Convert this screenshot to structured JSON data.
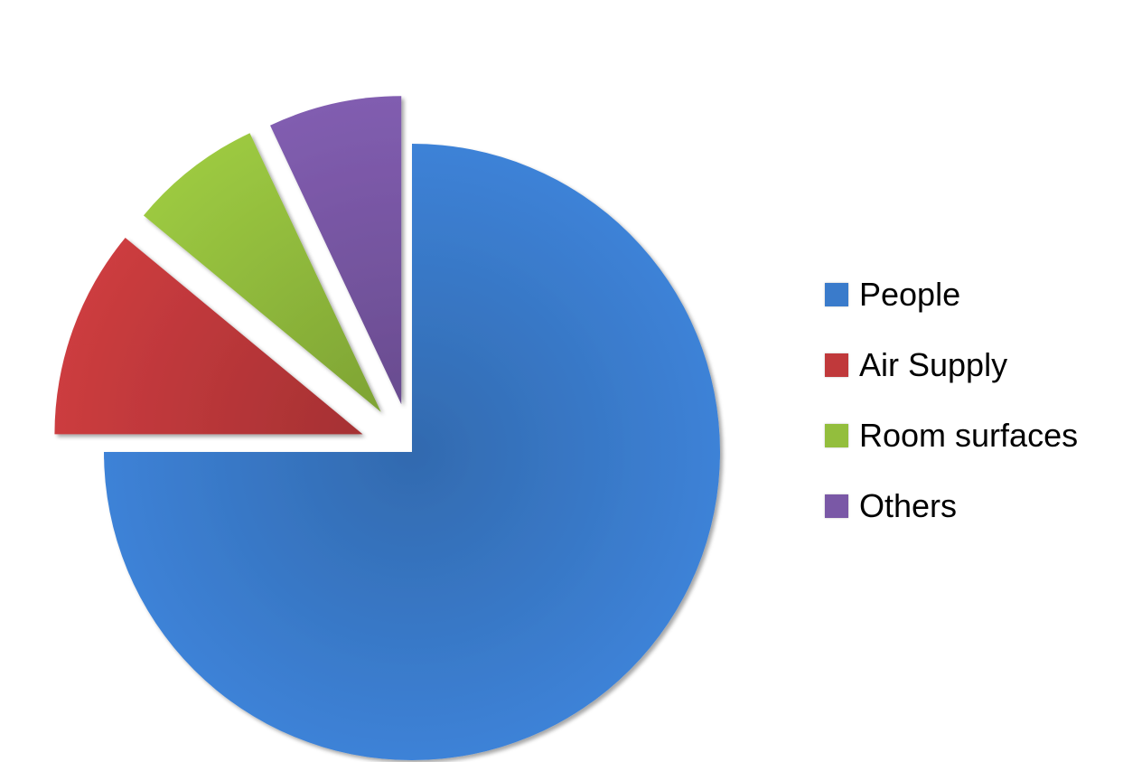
{
  "chart_data": {
    "type": "pie",
    "title": "",
    "slices": [
      {
        "label": "People",
        "value": 75,
        "color": "#3A7BCB",
        "exploded": false
      },
      {
        "label": "Air Supply",
        "value": 11,
        "color": "#C0393B",
        "exploded": true
      },
      {
        "label": "Room surfaces",
        "value": 7,
        "color": "#93BE3D",
        "exploded": true
      },
      {
        "label": "Others",
        "value": 7,
        "color": "#7A58A6",
        "exploded": true
      }
    ],
    "legend": {
      "position": "right"
    }
  }
}
